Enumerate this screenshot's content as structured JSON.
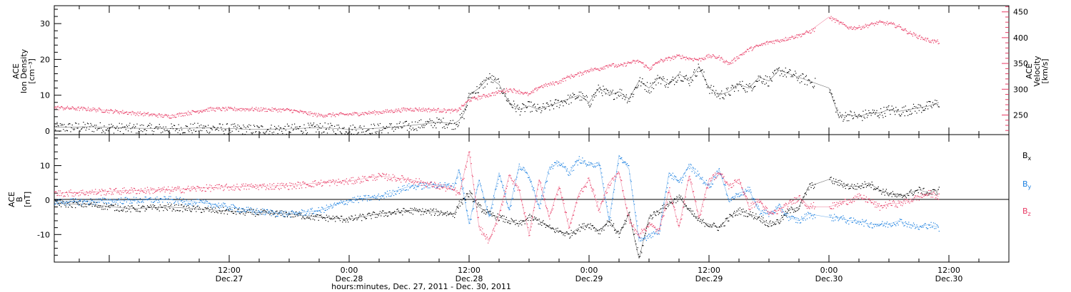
{
  "colors": {
    "black": "#000000",
    "red": "#e83a64",
    "blue": "#1a7fe0"
  },
  "x_axis": {
    "title": "hours:minutes, Dec. 27, 2011 - Dec. 30, 2011",
    "range_hours": [
      -5.5,
      90
    ],
    "ticks": [
      {
        "hours": 12,
        "time": "12:00",
        "date": "Dec.27"
      },
      {
        "hours": 24,
        "time": "0:00",
        "date": "Dec.28"
      },
      {
        "hours": 36,
        "time": "12:00",
        "date": "Dec.28"
      },
      {
        "hours": 48,
        "time": "0:00",
        "date": "Dec.29"
      },
      {
        "hours": 60,
        "time": "12:00",
        "date": "Dec.29"
      },
      {
        "hours": 72,
        "time": "0:00",
        "date": "Dec.30"
      },
      {
        "hours": 84,
        "time": "12:00",
        "date": "Dec.30"
      }
    ]
  },
  "chart_data": [
    {
      "type": "scatter",
      "panel": "density-velocity",
      "left_axis": {
        "label_lines": [
          "ACE",
          "Ion Density",
          "[cm⁻³]"
        ],
        "ylim": [
          -1,
          35
        ],
        "ticks": [
          0,
          10,
          20,
          30
        ]
      },
      "right_axis": {
        "label_lines": [
          "ACE",
          "Velocity",
          "[km/s]"
        ],
        "ylim": [
          212,
          462
        ],
        "ticks": [
          250,
          300,
          350,
          400,
          450
        ]
      },
      "series": [
        {
          "name": "Ion Density",
          "axis": "left",
          "color": "#000000",
          "x_hours": [
            -5.5,
            -2,
            2,
            6,
            10,
            14,
            18,
            21,
            24,
            27,
            30,
            33,
            34.5,
            35,
            35.5,
            36,
            37,
            38,
            39,
            40,
            41,
            42,
            43,
            44,
            45,
            46,
            47,
            48,
            49,
            50,
            51,
            52,
            53,
            54,
            55,
            56,
            57,
            58,
            59,
            60,
            61,
            62,
            63,
            64,
            65,
            66,
            67,
            68,
            69,
            70,
            71,
            72,
            73,
            74,
            75,
            76,
            77,
            78,
            79,
            80,
            81,
            82,
            83
          ],
          "values": [
            1,
            1.2,
            0.8,
            0.7,
            0.9,
            0.5,
            0.6,
            1,
            0.5,
            0.8,
            1.5,
            2.5,
            2,
            3,
            5,
            10,
            12,
            15,
            13,
            8,
            6,
            7,
            6,
            7,
            8,
            9,
            10,
            8,
            12,
            10,
            11,
            9,
            14,
            12,
            15,
            13,
            16,
            14,
            18,
            12,
            10,
            11,
            13,
            12,
            15,
            14,
            17,
            16,
            15,
            14,
            13,
            12,
            4,
            4.5,
            4,
            5,
            5,
            6,
            5.5,
            6,
            6.5,
            7,
            8
          ]
        },
        {
          "name": "Velocity",
          "axis": "right",
          "color": "#e83a64",
          "x_hours": [
            -5.5,
            -2,
            2,
            6,
            10,
            14,
            18,
            21,
            24,
            27,
            30,
            33,
            34.5,
            35,
            36,
            37,
            38,
            39,
            40,
            41,
            42,
            43,
            44,
            45,
            46,
            47,
            48,
            49,
            50,
            51,
            52,
            53,
            54,
            55,
            56,
            57,
            58,
            59,
            60,
            61,
            62,
            63,
            64,
            65,
            66,
            67,
            68,
            69,
            70,
            71,
            72,
            73,
            74,
            75,
            76,
            77,
            78,
            79,
            80,
            81,
            82,
            83
          ],
          "values": [
            265,
            262,
            255,
            248,
            262,
            262,
            260,
            250,
            252,
            256,
            262,
            260,
            258,
            262,
            280,
            285,
            290,
            295,
            300,
            296,
            290,
            305,
            310,
            315,
            325,
            330,
            338,
            340,
            348,
            345,
            352,
            355,
            340,
            355,
            360,
            365,
            360,
            358,
            365,
            362,
            350,
            365,
            378,
            385,
            392,
            395,
            400,
            405,
            412,
            420,
            440,
            430,
            420,
            420,
            425,
            430,
            428,
            422,
            410,
            402,
            395,
            392
          ]
        }
      ]
    },
    {
      "type": "scatter",
      "panel": "magnetic-field",
      "left_axis": {
        "label_lines": [
          "ACE",
          "B",
          "[nT]"
        ],
        "ylim": [
          -18,
          19
        ],
        "ticks": [
          -10,
          0,
          10
        ]
      },
      "series": [
        {
          "name": "Bx",
          "color": "#000000",
          "x_hours": [
            -5.5,
            -2,
            2,
            6,
            10,
            14,
            18,
            21,
            24,
            27,
            30,
            33,
            34.5,
            35,
            36,
            37,
            38,
            39,
            40,
            41,
            42,
            43,
            44,
            45,
            46,
            47,
            48,
            49,
            50,
            51,
            52,
            53,
            54,
            55,
            56,
            57,
            58,
            59,
            60,
            61,
            62,
            63,
            64,
            65,
            66,
            67,
            68,
            69,
            70,
            71,
            72,
            73,
            74,
            75,
            76,
            77,
            78,
            79,
            80,
            81,
            82,
            83
          ],
          "values": [
            -1,
            -1.2,
            -2.5,
            -2,
            -2.8,
            -3.5,
            -4,
            -5,
            -5.5,
            -4,
            -3,
            -3.5,
            -4,
            -1,
            2,
            -2,
            -4,
            -5,
            -6,
            -7,
            -5,
            -6,
            -8,
            -9,
            -10,
            -8,
            -7,
            -9,
            -6,
            -10,
            -4,
            -17,
            -5,
            -3,
            -1,
            1,
            -3,
            -6,
            -7,
            -8,
            -5,
            -3,
            -4,
            -5,
            -7,
            -6,
            -3,
            -2,
            4,
            5,
            6,
            5,
            4,
            4,
            5,
            3,
            2,
            1,
            2,
            3,
            2,
            3
          ]
        },
        {
          "name": "By",
          "color": "#1a7fe0",
          "x_hours": [
            -5.5,
            -2,
            2,
            6,
            10,
            14,
            18,
            21,
            24,
            27,
            30,
            33,
            34.5,
            35,
            36,
            37,
            38,
            39,
            40,
            41,
            42,
            43,
            44,
            45,
            46,
            47,
            48,
            49,
            50,
            51,
            52,
            53,
            54,
            55,
            56,
            57,
            58,
            59,
            60,
            61,
            62,
            63,
            64,
            65,
            66,
            67,
            68,
            69,
            70,
            71,
            72,
            73,
            74,
            75,
            76,
            77,
            78,
            79,
            80,
            81,
            82,
            83
          ],
          "values": [
            -0.5,
            -0.3,
            0,
            0.2,
            -1,
            -3,
            -4,
            -3,
            0,
            1,
            4,
            4.5,
            4,
            9,
            -7,
            6,
            -5,
            8,
            -3,
            10,
            7,
            -2,
            9,
            11,
            8,
            12,
            10,
            11,
            -6,
            13,
            9,
            -12,
            -10,
            -9,
            8,
            5,
            10,
            7,
            4,
            9,
            0,
            2,
            3,
            -3,
            -4,
            -2,
            -5,
            -6,
            -4,
            -5,
            -5,
            -5,
            -6,
            -6,
            -7,
            -7,
            -7,
            -6,
            -7,
            -8,
            -7,
            -8
          ]
        },
        {
          "name": "Bz",
          "color": "#e83a64",
          "x_hours": [
            -5.5,
            -2,
            2,
            6,
            10,
            14,
            18,
            21,
            24,
            27,
            30,
            33,
            34.5,
            35,
            36,
            37,
            38,
            39,
            40,
            41,
            42,
            43,
            44,
            45,
            46,
            47,
            48,
            49,
            50,
            51,
            52,
            53,
            54,
            55,
            56,
            57,
            58,
            59,
            60,
            61,
            62,
            63,
            64,
            65,
            66,
            67,
            68,
            69,
            70,
            71,
            72,
            73,
            74,
            75,
            76,
            77,
            78,
            79,
            80,
            81,
            82,
            83
          ],
          "values": [
            2,
            2.3,
            2.8,
            3,
            3.6,
            4,
            4.2,
            5,
            5.5,
            7,
            6,
            4,
            3,
            1.5,
            14,
            -8,
            -12,
            -4,
            7,
            3,
            -10,
            6,
            -5,
            4,
            -8,
            2,
            6,
            -3,
            5,
            8,
            -6,
            -10,
            -7,
            -9,
            3,
            -8,
            7,
            -5,
            6,
            8,
            4,
            6,
            -2,
            0,
            -4,
            -3,
            -1,
            1,
            -2,
            -1,
            -2,
            -1,
            0,
            1,
            0,
            -2,
            -1,
            -1,
            0,
            1,
            2,
            1
          ]
        }
      ]
    }
  ],
  "legend": {
    "bx_main": "B",
    "bx_sub": "x",
    "by_main": "B",
    "by_sub": "y",
    "bz_main": "B",
    "bz_sub": "z"
  }
}
